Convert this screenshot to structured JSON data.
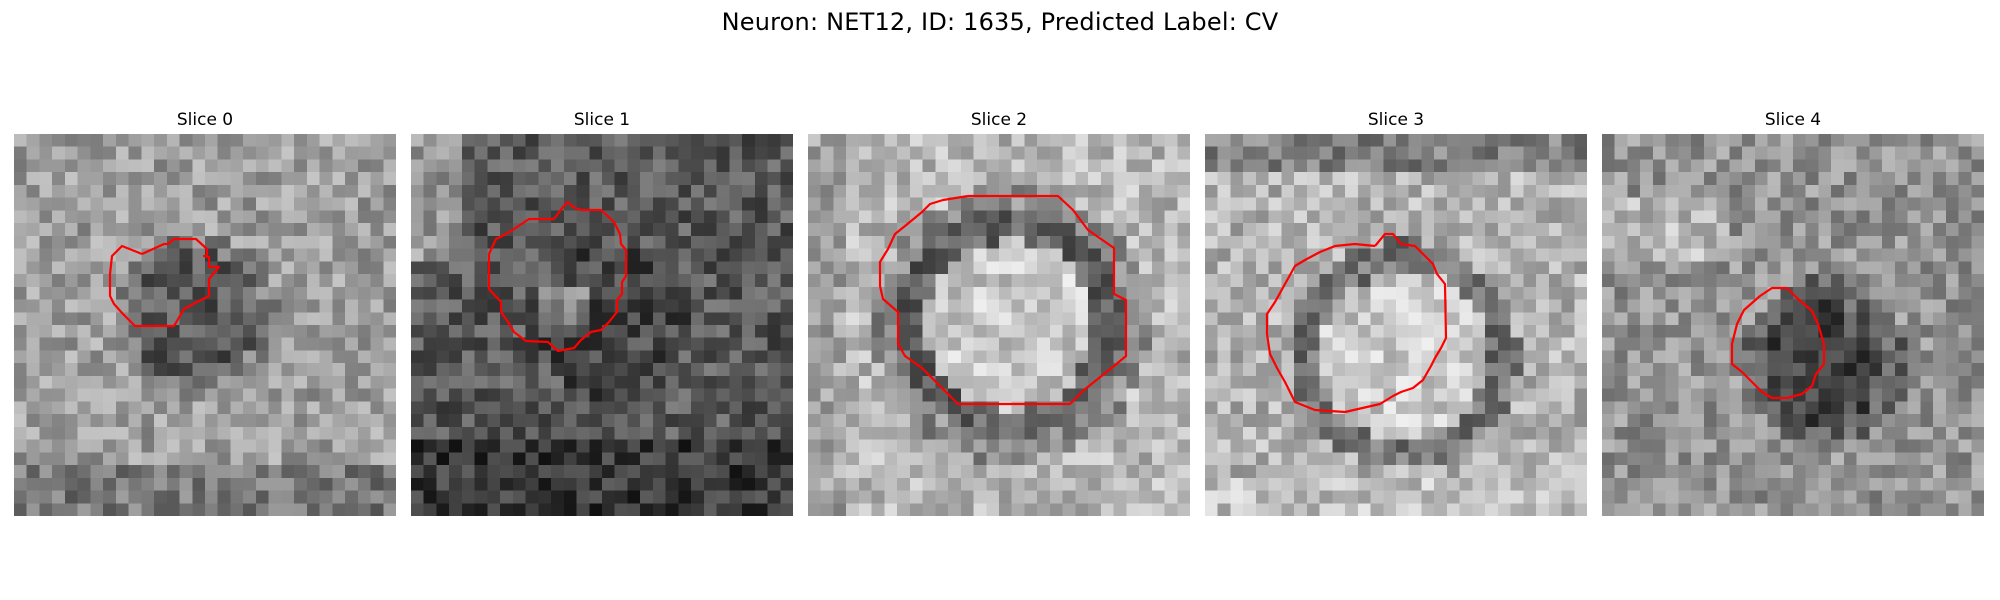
{
  "figure": {
    "title": "Neuron: NET12, ID: 1635, Predicted Label: CV"
  },
  "panels": [
    {
      "label": "Slice 0"
    },
    {
      "label": "Slice 1"
    },
    {
      "label": "Slice 2"
    },
    {
      "label": "Slice 3"
    },
    {
      "label": "Slice 4"
    }
  ],
  "colors": {
    "contour": "#ff0000",
    "background": "#ffffff",
    "text": "#000000"
  }
}
